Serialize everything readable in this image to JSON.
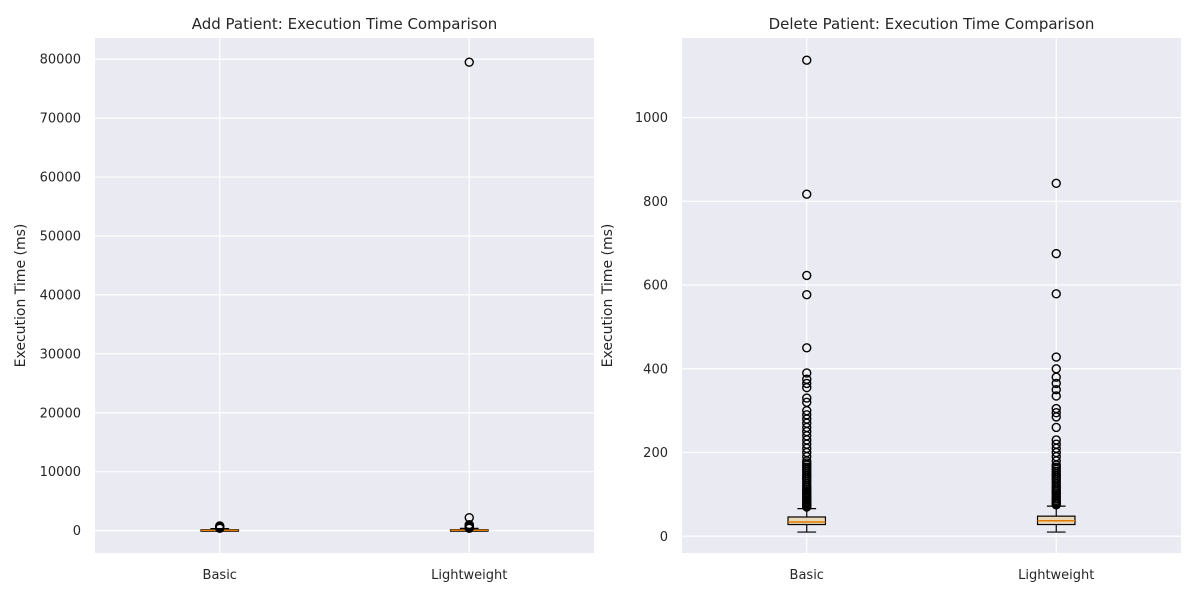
{
  "chart_data": [
    {
      "type": "box",
      "title": "Add Patient: Execution Time Comparison",
      "xlabel": "",
      "ylabel": "Execution Time (ms)",
      "ylim": [
        -3800,
        83600
      ],
      "yticks": [
        0,
        10000,
        20000,
        30000,
        40000,
        50000,
        60000,
        70000,
        80000
      ],
      "categories": [
        "Basic",
        "Lightweight"
      ],
      "boxes": [
        {
          "name": "Basic",
          "q1": 0,
          "median": 50,
          "q3": 150,
          "whisker_low": 0,
          "whisker_high": 350,
          "outliers": [
            400,
            500,
            600,
            700,
            800
          ]
        },
        {
          "name": "Lightweight",
          "q1": 0,
          "median": 60,
          "q3": 160,
          "whisker_low": 0,
          "whisker_high": 380,
          "outliers": [
            400,
            500,
            600,
            700,
            800,
            900,
            1000,
            2200,
            79500
          ]
        }
      ]
    },
    {
      "type": "box",
      "title": "Delete Patient: Execution Time Comparison",
      "xlabel": "",
      "ylabel": "Execution Time (ms)",
      "ylim": [
        -40,
        1190
      ],
      "yticks": [
        0,
        200,
        400,
        600,
        800,
        1000
      ],
      "categories": [
        "Basic",
        "Lightweight"
      ],
      "boxes": [
        {
          "name": "Basic",
          "q1": 28,
          "median": 34,
          "q3": 46,
          "whisker_low": 10,
          "whisker_high": 66,
          "outliers": [
            70,
            72,
            75,
            78,
            80,
            83,
            86,
            90,
            93,
            96,
            100,
            104,
            108,
            112,
            116,
            120,
            125,
            130,
            135,
            140,
            145,
            150,
            155,
            160,
            165,
            170,
            175,
            180,
            190,
            200,
            210,
            220,
            230,
            240,
            250,
            260,
            270,
            280,
            290,
            300,
            320,
            330,
            355,
            365,
            375,
            390,
            450,
            577,
            623,
            817,
            1137
          ]
        },
        {
          "name": "Lightweight",
          "q1": 28,
          "median": 37,
          "q3": 48,
          "whisker_low": 10,
          "whisker_high": 72,
          "outliers": [
            75,
            78,
            80,
            83,
            86,
            90,
            94,
            98,
            102,
            106,
            110,
            115,
            120,
            125,
            130,
            135,
            140,
            145,
            150,
            155,
            160,
            165,
            170,
            180,
            190,
            200,
            210,
            220,
            230,
            260,
            285,
            295,
            305,
            335,
            350,
            365,
            380,
            400,
            428,
            579,
            675,
            843
          ]
        }
      ]
    }
  ]
}
